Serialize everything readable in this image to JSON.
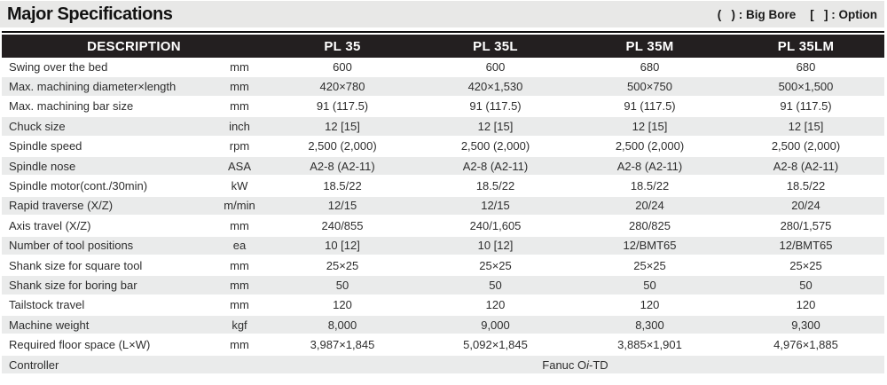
{
  "header": {
    "title": "Major Specifications",
    "legend_big_bore": "(   ) : Big Bore",
    "legend_option": "[   ] : Option"
  },
  "table": {
    "header": {
      "description": "DESCRIPTION",
      "models": [
        "PL 35",
        "PL 35L",
        "PL 35M",
        "PL 35LM"
      ]
    },
    "rows": [
      {
        "name": "Swing over the bed",
        "unit": "mm",
        "values": [
          "600",
          "600",
          "680",
          "680"
        ]
      },
      {
        "name": "Max. machining diameter×length",
        "unit": "mm",
        "values": [
          "420×780",
          "420×1,530",
          "500×750",
          "500×1,500"
        ]
      },
      {
        "name": "Max. machining bar size",
        "unit": "mm",
        "values": [
          "91 (117.5)",
          "91 (117.5)",
          "91 (117.5)",
          "91 (117.5)"
        ]
      },
      {
        "name": "Chuck size",
        "unit": "inch",
        "values": [
          "12 [15]",
          "12 [15]",
          "12 [15]",
          "12 [15]"
        ]
      },
      {
        "name": "Spindle speed",
        "unit": "rpm",
        "values": [
          "2,500 (2,000)",
          "2,500 (2,000)",
          "2,500 (2,000)",
          "2,500 (2,000)"
        ]
      },
      {
        "name": "Spindle nose",
        "unit": "ASA",
        "values": [
          "A2-8 (A2-11)",
          "A2-8 (A2-11)",
          "A2-8 (A2-11)",
          "A2-8 (A2-11)"
        ]
      },
      {
        "name": "Spindle motor(cont./30min)",
        "unit": "kW",
        "values": [
          "18.5/22",
          "18.5/22",
          "18.5/22",
          "18.5/22"
        ]
      },
      {
        "name": "Rapid traverse (X/Z)",
        "unit": "m/min",
        "values": [
          "12/15",
          "12/15",
          "20/24",
          "20/24"
        ]
      },
      {
        "name": "Axis travel (X/Z)",
        "unit": "mm",
        "values": [
          "240/855",
          "240/1,605",
          "280/825",
          "280/1,575"
        ]
      },
      {
        "name": "Number of tool positions",
        "unit": "ea",
        "values": [
          "10 [12]",
          "10 [12]",
          "12/BMT65",
          "12/BMT65"
        ]
      },
      {
        "name": "Shank size for square tool",
        "unit": "mm",
        "values": [
          "25×25",
          "25×25",
          "25×25",
          "25×25"
        ]
      },
      {
        "name": "Shank size for boring bar",
        "unit": "mm",
        "values": [
          "50",
          "50",
          "50",
          "50"
        ]
      },
      {
        "name": "Tailstock travel",
        "unit": "mm",
        "values": [
          "120",
          "120",
          "120",
          "120"
        ]
      },
      {
        "name": "Machine weight",
        "unit": "kgf",
        "values": [
          "8,000",
          "9,000",
          "8,300",
          "9,300"
        ]
      },
      {
        "name": "Required floor space (L×W)",
        "unit": "mm",
        "values": [
          "3,987×1,845",
          "5,092×1,845",
          "3,885×1,901",
          "4,976×1,885"
        ]
      }
    ],
    "controller_row": {
      "name": "Controller",
      "unit": "",
      "value_pre": "Fanuc O",
      "value_italic": "i",
      "value_post": "-TD"
    }
  },
  "colors": {
    "header_bg": "#231f20",
    "row_alt": "#eaebeb",
    "titlebar_bg": "#e8e8e7"
  }
}
